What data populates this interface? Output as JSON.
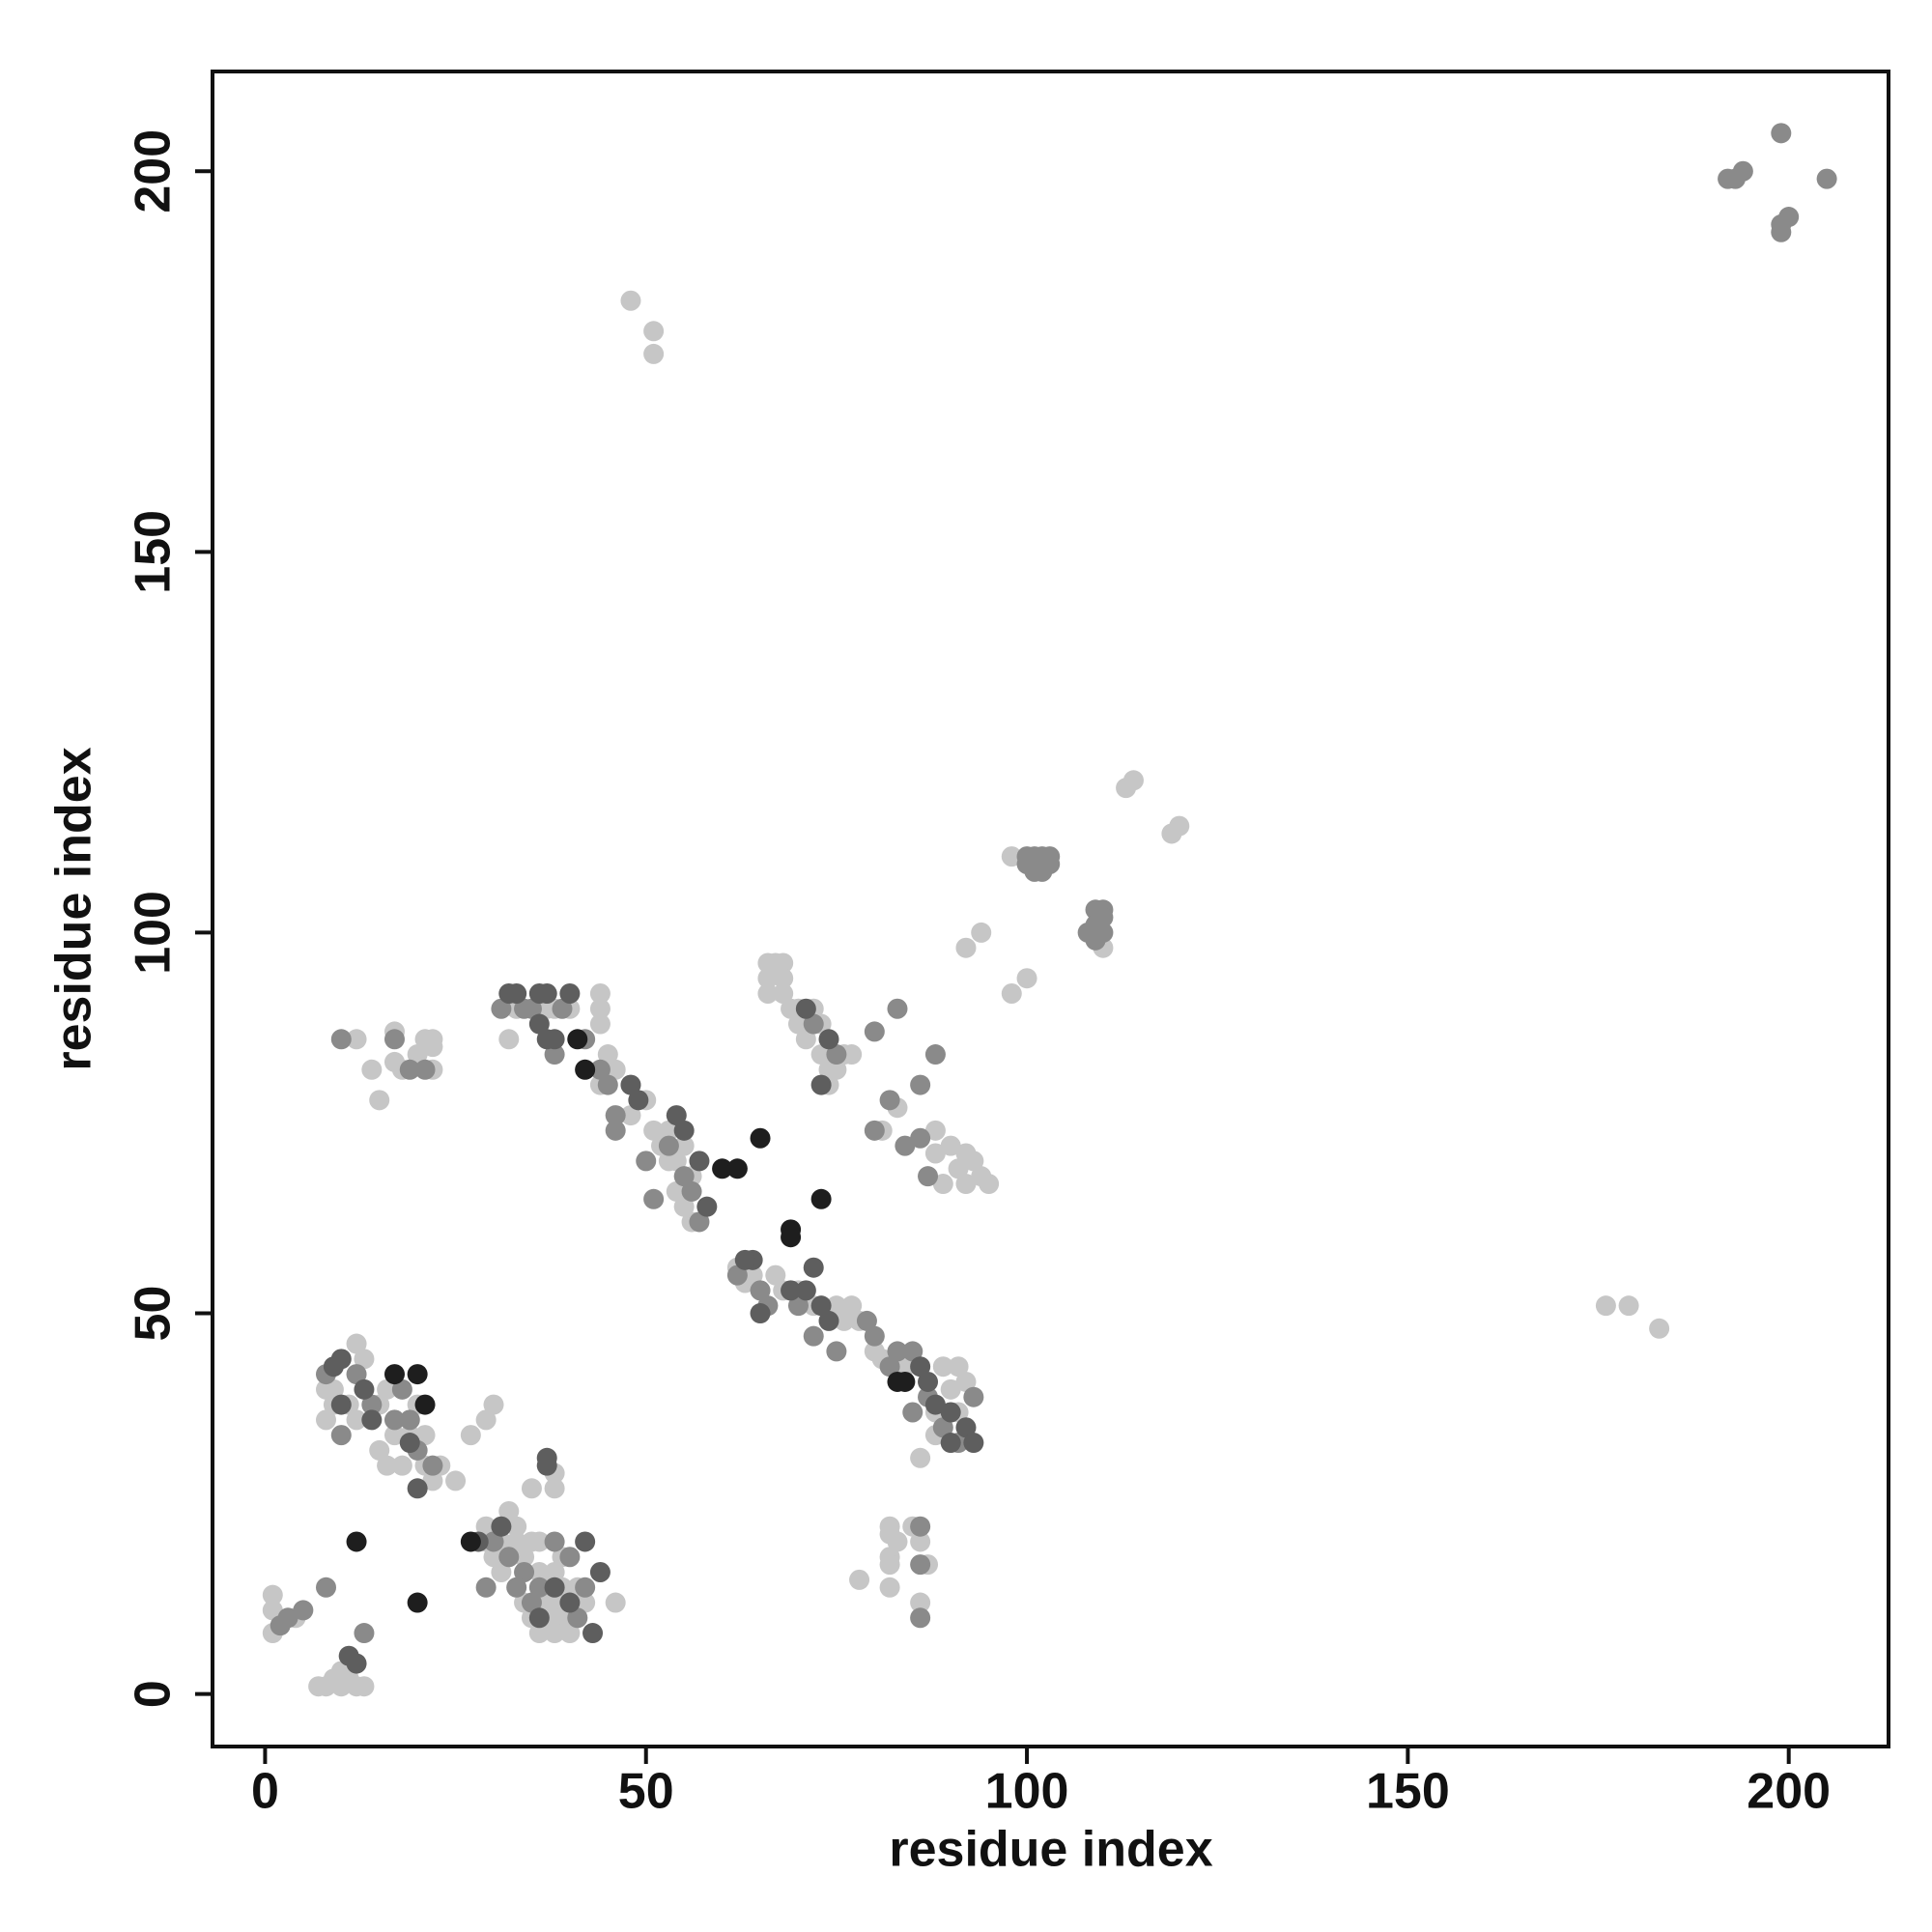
{
  "chart_data": {
    "type": "scatter",
    "x_label": "residue index",
    "y_label": "residue index",
    "xlim": [
      -6.9,
      213.1
    ],
    "ylim": [
      -6.9,
      213.1
    ],
    "xticks": [
      0,
      50,
      100,
      150,
      200
    ],
    "yticks": [
      0,
      50,
      100,
      150,
      200
    ],
    "grid": false,
    "series": [
      {
        "color": "#c6c6c6",
        "x": [
          48,
          51,
          51,
          176,
          179,
          183,
          114,
          113,
          120,
          119,
          98,
          110,
          94,
          92,
          100,
          98,
          32,
          33,
          37,
          38,
          40,
          44,
          44,
          44,
          45,
          46,
          44,
          48,
          50,
          48,
          51,
          53,
          52,
          54,
          55,
          53,
          56,
          55,
          56,
          54,
          62,
          63,
          64,
          67,
          68,
          70,
          72,
          75,
          77,
          76,
          78,
          80,
          81,
          84,
          89,
          91,
          92,
          90,
          88,
          86,
          91,
          66,
          67,
          68,
          66,
          68,
          66,
          68,
          69,
          70,
          72,
          71,
          70,
          73,
          73,
          76,
          77,
          74,
          75,
          74,
          81,
          83,
          88,
          90,
          92,
          93,
          91,
          94,
          95,
          92,
          89,
          88,
          12,
          9,
          8,
          11,
          9,
          12,
          8,
          15,
          16,
          17,
          15,
          19,
          21,
          18,
          21,
          23,
          22,
          25,
          16,
          13,
          27,
          29,
          30,
          20,
          38,
          38,
          35,
          32,
          29,
          33,
          29,
          31,
          33,
          35,
          36,
          39,
          34,
          31,
          36,
          38,
          37,
          39,
          41,
          34,
          36,
          38,
          42,
          46,
          35,
          37,
          39,
          41,
          36,
          38,
          40,
          31,
          30,
          1,
          1,
          1,
          4,
          10,
          9,
          8,
          7,
          10,
          12,
          13,
          11,
          12,
          14,
          17,
          18,
          15,
          20,
          21,
          22,
          22,
          22,
          17,
          78,
          82,
          82,
          82,
          82,
          83,
          82,
          85,
          87,
          86,
          86,
          88
        ],
        "values": [
          183,
          179,
          176,
          51,
          51,
          48,
          120,
          119,
          114,
          113,
          110,
          98,
          100,
          98,
          94,
          92,
          86,
          90,
          90,
          90,
          90,
          92,
          90,
          88,
          84,
          82,
          80,
          80,
          78,
          76,
          74,
          74,
          72,
          70,
          72,
          70,
          68,
          64,
          62,
          66,
          56,
          54,
          55,
          55,
          53,
          53,
          51,
          51,
          51,
          49,
          49,
          45,
          44,
          43,
          43,
          43,
          41,
          40,
          37,
          31,
          37,
          96,
          96,
          96,
          94,
          94,
          92,
          92,
          90,
          90,
          90,
          86,
          88,
          88,
          84,
          84,
          84,
          82,
          82,
          80,
          74,
          77,
          74,
          72,
          71,
          70,
          69,
          68,
          67,
          67,
          67,
          71,
          46,
          40,
          40,
          38,
          38,
          36,
          36,
          38,
          40,
          34,
          32,
          34,
          34,
          30,
          30,
          30,
          28,
          28,
          30,
          44,
          34,
          36,
          38,
          38,
          29,
          27,
          27,
          24,
          22,
          22,
          20,
          20,
          20,
          20,
          20,
          18,
          18,
          16,
          16,
          16,
          14,
          14,
          14,
          12,
          12,
          12,
          12,
          12,
          10,
          10,
          10,
          10,
          8,
          8,
          8,
          18,
          18,
          13,
          11,
          8,
          10,
          3,
          2,
          1,
          1,
          1,
          1,
          1,
          2,
          86,
          82,
          87,
          82,
          78,
          84,
          86,
          86,
          85,
          82,
          83,
          15,
          22,
          21,
          18,
          17,
          20,
          14,
          22,
          17,
          12,
          20,
          34
        ]
      },
      {
        "color": "#8a8a8a",
        "x": [
          192,
          193,
          194,
          199,
          199,
          200,
          205,
          199,
          100,
          101,
          102,
          103,
          100,
          102,
          101,
          103,
          109,
          110,
          109,
          108,
          110,
          110,
          109,
          31,
          34,
          35,
          39,
          42,
          38,
          44,
          45,
          46,
          46,
          50,
          51,
          53,
          56,
          55,
          57,
          65,
          62,
          66,
          70,
          72,
          75,
          79,
          80,
          83,
          82,
          85,
          87,
          85,
          89,
          91,
          93,
          80,
          83,
          88,
          86,
          82,
          80,
          84,
          86,
          87,
          75,
          72,
          8,
          12,
          14,
          17,
          10,
          18,
          19,
          22,
          20,
          30,
          32,
          34,
          36,
          38,
          40,
          33,
          35,
          41,
          42,
          29,
          3,
          5,
          8,
          13,
          2,
          10,
          17,
          19,
          21,
          86,
          86,
          86
        ],
        "values": [
          199,
          199,
          200,
          205,
          192,
          194,
          199,
          193,
          110,
          110,
          110,
          110,
          109,
          108,
          108,
          109,
          103,
          103,
          101,
          100,
          100,
          102,
          99,
          90,
          90,
          90,
          90,
          86,
          84,
          82,
          80,
          74,
          76,
          70,
          65,
          72,
          66,
          68,
          62,
          53,
          55,
          51,
          51,
          47,
          45,
          49,
          47,
          45,
          43,
          45,
          39,
          37,
          35,
          33,
          39,
          87,
          90,
          84,
          80,
          78,
          74,
          72,
          73,
          68,
          84,
          88,
          42,
          42,
          38,
          36,
          34,
          40,
          36,
          30,
          32,
          20,
          18,
          16,
          14,
          20,
          18,
          14,
          12,
          10,
          14,
          14,
          10,
          11,
          14,
          8,
          9,
          86,
          86,
          82,
          82,
          22,
          17,
          10
        ]
      },
      {
        "color": "#5e5e5e",
        "x": [
          33,
          32,
          36,
          37,
          40,
          36,
          37,
          38,
          49,
          54,
          55,
          57,
          58,
          48,
          64,
          63,
          65,
          69,
          71,
          73,
          72,
          74,
          86,
          87,
          88,
          90,
          92,
          93,
          90,
          9,
          10,
          13,
          20,
          19,
          14,
          10,
          31,
          37,
          42,
          44,
          38,
          40,
          36,
          43,
          37,
          28,
          73,
          71,
          74,
          11,
          12
        ],
        "values": [
          92,
          92,
          92,
          92,
          92,
          88,
          86,
          86,
          78,
          76,
          74,
          70,
          64,
          80,
          57,
          57,
          50,
          53,
          53,
          51,
          56,
          49,
          43,
          41,
          38,
          37,
          35,
          33,
          33,
          43,
          44,
          40,
          27,
          33,
          36,
          38,
          22,
          30,
          20,
          16,
          14,
          12,
          10,
          8,
          31,
          20,
          80,
          90,
          86,
          5,
          4
        ]
      },
      {
        "color": "#1e1e1e",
        "x": [
          41,
          42,
          60,
          62,
          65,
          69,
          69,
          73,
          20,
          17,
          21,
          12,
          20,
          27,
          83,
          84
        ],
        "values": [
          86,
          82,
          69,
          69,
          73,
          61,
          60,
          65,
          42,
          42,
          38,
          20,
          12,
          20,
          41,
          41
        ]
      }
    ]
  }
}
